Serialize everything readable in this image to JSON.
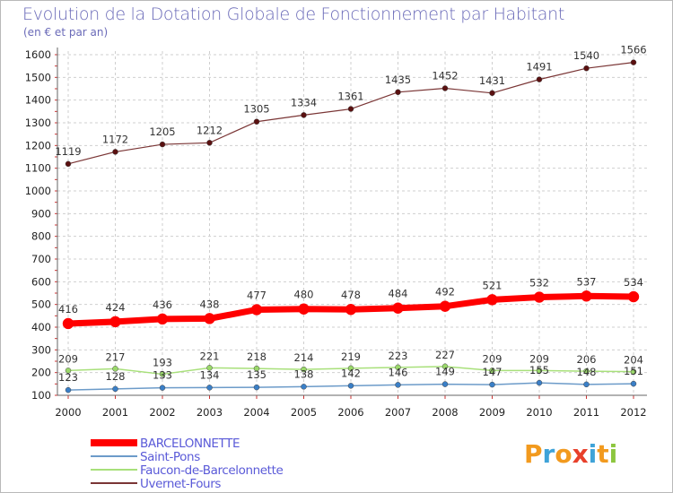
{
  "header": {
    "title": "Evolution de la Dotation Globale de Fonctionnement par Habitant",
    "subtitle": "(en € et par an)"
  },
  "logo": {
    "text": "Proxiti"
  },
  "colors": {
    "title": "#6a6ab8",
    "subtitle": "#6a6ab8",
    "grid": "#cfcfcf",
    "axis": "#666666",
    "background": "#ffffff",
    "legend_text": "#5a5ad8"
  },
  "chart_data": {
    "type": "line",
    "title": "Evolution de la Dotation Globale de Fonctionnement par Habitant",
    "subtitle": "(en € et par an)",
    "xlabel": "",
    "ylabel": "",
    "categories": [
      "2000",
      "2001",
      "2002",
      "2003",
      "2004",
      "2005",
      "2006",
      "2007",
      "2008",
      "2009",
      "2010",
      "2011",
      "2012"
    ],
    "ylim": [
      100,
      1600
    ],
    "yticks": [
      100,
      200,
      300,
      400,
      500,
      600,
      700,
      800,
      900,
      1000,
      1100,
      1200,
      1300,
      1400,
      1500,
      1600
    ],
    "grid": true,
    "legend_position": "bottom-left",
    "series": [
      {
        "name": "BARCELONNETTE",
        "values": [
          416,
          424,
          436,
          438,
          477,
          480,
          478,
          484,
          492,
          521,
          532,
          537,
          534
        ],
        "color": "#ff0000",
        "marker": "#ff0000"
      },
      {
        "name": "Saint-Pons",
        "values": [
          123,
          128,
          133,
          134,
          135,
          138,
          142,
          146,
          149,
          147,
          155,
          148,
          151
        ],
        "color": "#6c9bc9",
        "marker": "#3a7fc7"
      },
      {
        "name": "Faucon-de-Barcelonnette",
        "values": [
          209,
          217,
          193,
          221,
          218,
          214,
          219,
          223,
          227,
          209,
          209,
          206,
          204
        ],
        "color": "#a8e07a",
        "marker": "#9ad86a"
      },
      {
        "name": "Uvernet-Fours",
        "values": [
          1119,
          1172,
          1205,
          1212,
          1305,
          1334,
          1361,
          1435,
          1452,
          1431,
          1491,
          1540,
          1566
        ],
        "color": "#7a3535",
        "marker": "#5a1010"
      }
    ]
  }
}
